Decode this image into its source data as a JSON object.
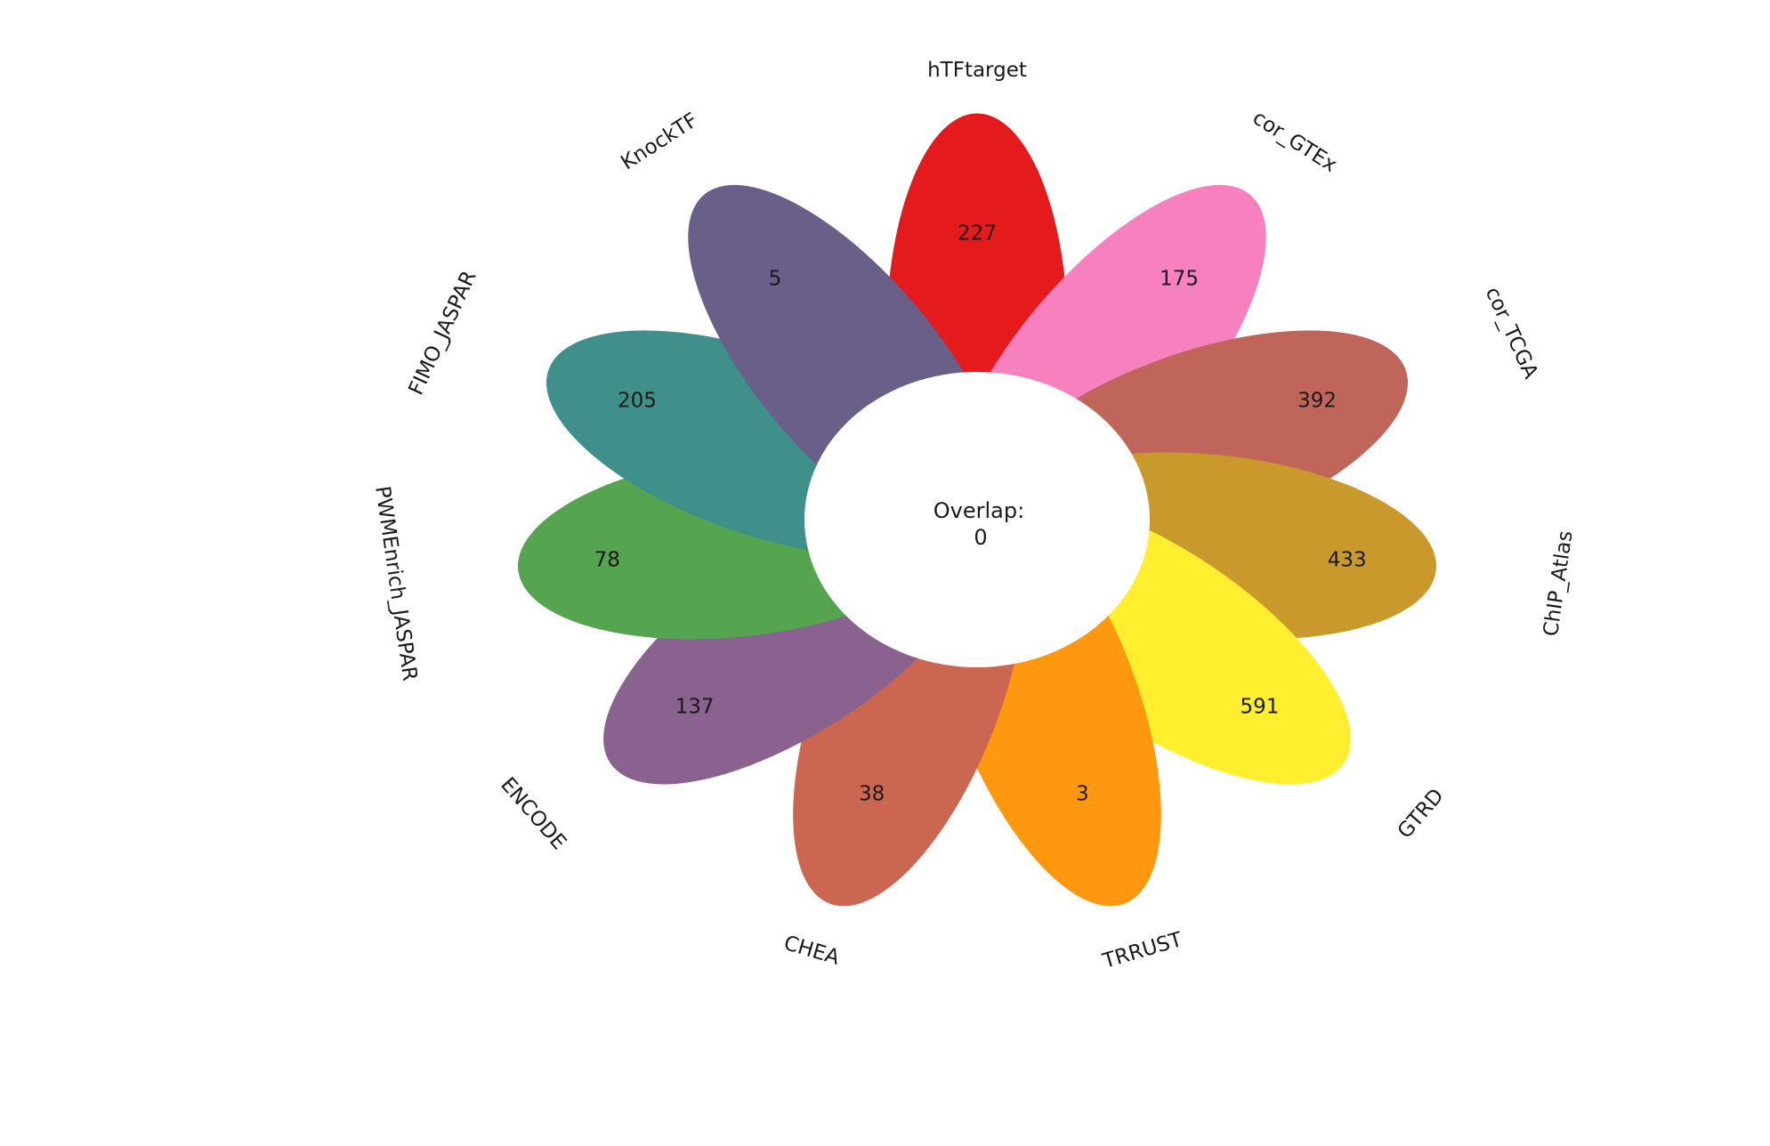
{
  "chart_data": {
    "type": "flower",
    "title": "",
    "center": {
      "label": "Overlap:",
      "value": "0"
    },
    "series": [
      {
        "name": "hTFtarget",
        "value": 227,
        "color": "#e41a1c"
      },
      {
        "name": "cor_GTEx",
        "value": 175,
        "color": "#f781bf"
      },
      {
        "name": "cor_TCGA",
        "value": 392,
        "color": "#c0655a"
      },
      {
        "name": "ChIP_Atlas",
        "value": 433,
        "color": "#c9992c"
      },
      {
        "name": "GTRD",
        "value": 591,
        "color": "#ffef2e"
      },
      {
        "name": "TRRUST",
        "value": 3,
        "color": "#ff980f"
      },
      {
        "name": "CHEA",
        "value": 38,
        "color": "#cb6651"
      },
      {
        "name": "ENCODE",
        "value": 137,
        "color": "#89628f"
      },
      {
        "name": "PWMEnrich_JASPAR",
        "value": 78,
        "color": "#55a550"
      },
      {
        "name": "FIMO_JASPAR",
        "value": 205,
        "color": "#3f8f8a"
      },
      {
        "name": "KnockTF",
        "value": 5,
        "color": "#6a5f88"
      }
    ]
  }
}
